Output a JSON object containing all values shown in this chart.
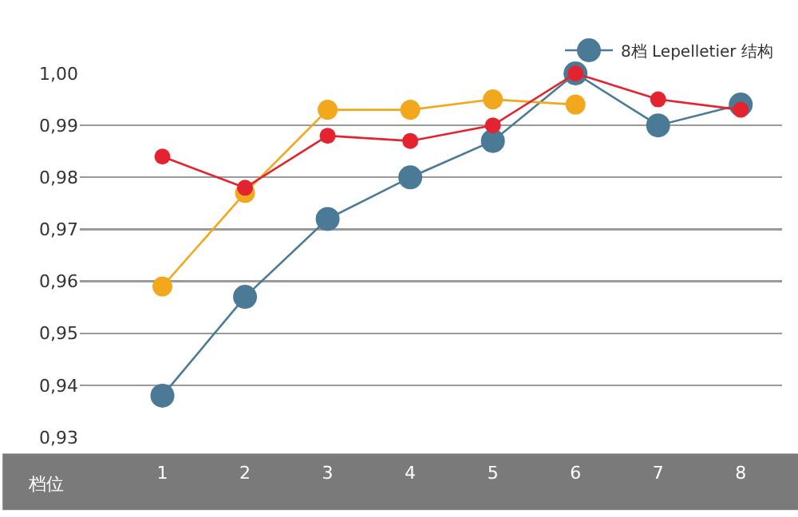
{
  "chart_data": {
    "type": "line",
    "xlabel": "档位",
    "categories": [
      "1",
      "2",
      "3",
      "4",
      "5",
      "6",
      "7",
      "8"
    ],
    "series": [
      {
        "color": "#e3232f",
        "values": [
          0.984,
          0.978,
          0.988,
          0.987,
          0.99,
          1.0,
          0.995,
          0.993
        ]
      },
      {
        "color": "#f2a81d",
        "values": [
          0.959,
          0.977,
          0.993,
          0.993,
          0.995,
          0.994,
          null,
          null
        ]
      },
      {
        "name": "8档 Lepelletier 结构",
        "color": "#4a7a96",
        "values": [
          0.938,
          0.957,
          0.972,
          0.98,
          0.987,
          1.0,
          0.99,
          0.994
        ]
      }
    ],
    "ylim": [
      0.93,
      1.0
    ],
    "yticks": [
      {
        "value": 0.93,
        "label": "0,93"
      },
      {
        "value": 0.94,
        "label": "0,94"
      },
      {
        "value": 0.95,
        "label": "0,95"
      },
      {
        "value": 0.96,
        "label": "0,96"
      },
      {
        "value": 0.97,
        "label": "0,97"
      },
      {
        "value": 0.98,
        "label": "0,98"
      },
      {
        "value": 0.99,
        "label": "0,99"
      },
      {
        "value": 1.0,
        "label": "1,00"
      }
    ],
    "grid": "y",
    "legend": "top right",
    "marker": "circle",
    "line_style": "solid"
  }
}
